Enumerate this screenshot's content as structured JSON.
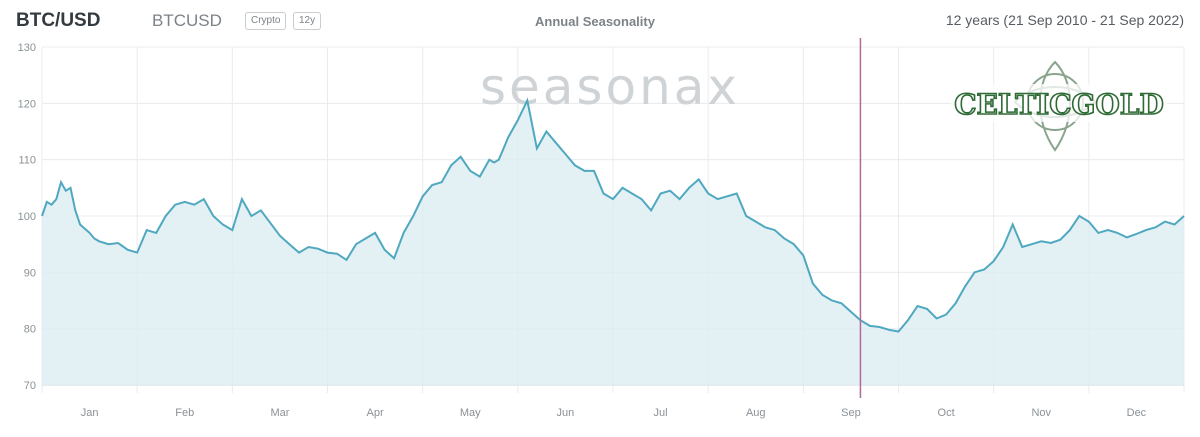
{
  "header": {
    "symbol": "BTC/USD",
    "code": "BTCUSD",
    "badge_asset": "Crypto",
    "badge_period": "12y",
    "title": "Annual Seasonality",
    "range": "12 years (21 Sep 2010 - 21 Sep 2022)"
  },
  "watermark": "seasonax",
  "logo_text": "CELTICGOLD",
  "colors": {
    "line": "#4fa8bf",
    "fill": "#dcedf3",
    "marker": "#b06a95",
    "grid": "#e8ecef",
    "watermark": "#cfd3d6",
    "logo": "#2f6b35"
  },
  "chart_data": {
    "type": "area",
    "title": "Annual Seasonality",
    "ylim": [
      70,
      130
    ],
    "yticks": [
      70,
      80,
      90,
      100,
      110,
      120,
      130
    ],
    "months": [
      "Jan",
      "Feb",
      "Mar",
      "Apr",
      "May",
      "Jun",
      "Jul",
      "Aug",
      "Sep",
      "Oct",
      "Nov",
      "Dec"
    ],
    "current_date_marker": 8.6,
    "series": [
      {
        "x": [
          0,
          0.05,
          0.1,
          0.15,
          0.2,
          0.25,
          0.3,
          0.35,
          0.4,
          0.5,
          0.55,
          0.6,
          0.7,
          0.8,
          0.9,
          1.0,
          1.1,
          1.2,
          1.3,
          1.4,
          1.5,
          1.6,
          1.7,
          1.8,
          1.9,
          2.0,
          2.1,
          2.2,
          2.3,
          2.5,
          2.6,
          2.7,
          2.8,
          2.9,
          3.0,
          3.1,
          3.2,
          3.3,
          3.4,
          3.5,
          3.6,
          3.7,
          3.8,
          3.9,
          4.0,
          4.1,
          4.2,
          4.3,
          4.4,
          4.5,
          4.6,
          4.7,
          4.75,
          4.8,
          4.85,
          4.9,
          5.0,
          5.1,
          5.2,
          5.3,
          5.4,
          5.5,
          5.6,
          5.7,
          5.8,
          5.9,
          6.0,
          6.1,
          6.2,
          6.3,
          6.4,
          6.5,
          6.6,
          6.7,
          6.8,
          6.9,
          7.0,
          7.1,
          7.2,
          7.3,
          7.4,
          7.5,
          7.6,
          7.7,
          7.8,
          7.9,
          8.0,
          8.1,
          8.2,
          8.3,
          8.4,
          8.5,
          8.6,
          8.7,
          8.8,
          8.9,
          9.0,
          9.1,
          9.2,
          9.3,
          9.4,
          9.5,
          9.6,
          9.7,
          9.8,
          9.9,
          10.0,
          10.1,
          10.2,
          10.3,
          10.4,
          10.5,
          10.6,
          10.7,
          10.8,
          10.9,
          11.0,
          11.1,
          11.2,
          11.3,
          11.4,
          11.5,
          11.6,
          11.7,
          11.8,
          11.9,
          12.0
        ],
        "values": [
          100,
          102.5,
          102,
          103,
          106,
          104.5,
          105,
          101,
          98.5,
          97,
          96,
          95.5,
          95,
          95.2,
          94,
          93.5,
          97.5,
          97,
          100,
          102,
          102.5,
          102,
          103,
          100,
          98.5,
          97.5,
          103,
          100,
          101,
          96.5,
          95,
          93.5,
          94.5,
          94.2,
          93.5,
          93.3,
          92.2,
          95,
          96,
          97,
          94,
          92.5,
          97,
          100,
          103.5,
          105.5,
          106,
          109,
          110.5,
          108,
          107,
          110,
          109.5,
          110,
          112,
          114,
          117,
          120.5,
          112,
          115,
          113,
          111,
          109,
          108,
          108,
          104,
          103,
          105,
          104,
          103,
          101,
          104,
          104.5,
          103,
          105,
          106.5,
          104,
          103,
          103.5,
          104,
          100,
          99,
          98,
          97.5,
          96,
          95,
          93,
          88,
          86,
          85,
          84.5,
          83,
          81.5,
          80.5,
          80.3,
          79.8,
          79.5,
          81.5,
          84,
          83.5,
          81.8,
          82.5,
          84.5,
          87.5,
          90,
          90.5,
          92,
          94.5,
          98.5,
          94.5,
          95,
          95.5,
          95.2,
          95.8,
          97.5,
          100,
          99,
          97,
          97.5,
          97,
          96.2,
          96.8,
          97.5,
          98,
          99,
          98.5,
          100
        ]
      }
    ]
  }
}
